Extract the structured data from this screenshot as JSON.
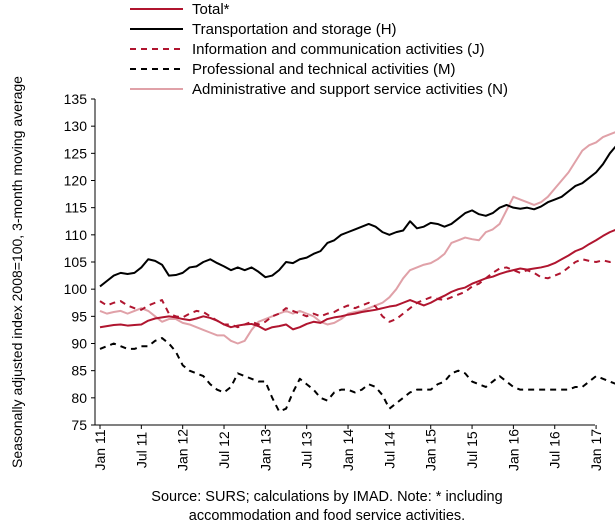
{
  "chart_data": {
    "type": "line",
    "ylabel": "Seasonally adjusted index 2008=100, 3-month moving average",
    "ylim": [
      75,
      135
    ],
    "yticks": [
      75,
      80,
      85,
      90,
      95,
      100,
      105,
      110,
      115,
      120,
      125,
      130,
      135
    ],
    "x_start": "Jan 11",
    "x_end": "Apr 17",
    "xtick_labels": [
      "Jan 11",
      "Jul 11",
      "Jan 12",
      "Jul 12",
      "Jan 13",
      "Jul 13",
      "Jan 14",
      "Jul 14",
      "Jan 15",
      "Jul 15",
      "Jan 16",
      "Jul 16",
      "Jan 17"
    ],
    "legend_position": "top",
    "grid": false,
    "source": "Source: SURS; calculations by IMAD. Note: * including",
    "source_line2": "accommodation and food service activities.",
    "series": [
      {
        "name": "Total*",
        "color": "#b0152f",
        "dash": "solid",
        "values": [
          93.0,
          93.2,
          93.4,
          93.5,
          93.3,
          93.4,
          93.5,
          94.2,
          94.6,
          94.8,
          95.0,
          94.8,
          94.5,
          94.3,
          94.6,
          95.0,
          94.7,
          94.2,
          93.5,
          93.0,
          93.3,
          93.5,
          93.6,
          93.2,
          92.5,
          93.0,
          93.2,
          93.5,
          92.6,
          93.0,
          93.6,
          94.0,
          93.8,
          94.5,
          94.8,
          95.0,
          95.3,
          95.5,
          95.8,
          96.0,
          96.2,
          96.5,
          96.8,
          97.0,
          97.5,
          98.0,
          97.5,
          97.0,
          97.5,
          98.2,
          98.8,
          99.5,
          100.0,
          100.3,
          101.0,
          101.5,
          102.0,
          102.3,
          102.8,
          103.2,
          103.5,
          103.8,
          103.6,
          103.8,
          104.0,
          104.3,
          104.8,
          105.5,
          106.2,
          107.0,
          107.5,
          108.3,
          109.0,
          109.8,
          110.5,
          111.0,
          112.0
        ]
      },
      {
        "name": "Transportation and storage (H)",
        "color": "#000000",
        "dash": "solid",
        "values": [
          100.5,
          101.5,
          102.5,
          103.0,
          102.8,
          103.0,
          104.0,
          105.5,
          105.2,
          104.5,
          102.5,
          102.6,
          103.0,
          104.0,
          104.2,
          105.0,
          105.5,
          104.8,
          104.2,
          103.5,
          104.0,
          103.5,
          104.0,
          103.2,
          102.2,
          102.5,
          103.5,
          105.0,
          104.8,
          105.5,
          105.8,
          106.5,
          107.0,
          108.5,
          109.0,
          110.0,
          110.5,
          111.0,
          111.5,
          112.0,
          111.5,
          110.5,
          110.0,
          110.5,
          110.8,
          112.5,
          111.2,
          111.5,
          112.2,
          112.0,
          111.5,
          112.0,
          113.0,
          114.0,
          114.5,
          113.8,
          113.5,
          114.0,
          115.0,
          115.5,
          115.0,
          114.8,
          115.0,
          114.7,
          115.2,
          116.0,
          116.5,
          117.0,
          118.0,
          119.0,
          119.5,
          120.5,
          121.5,
          123.0,
          125.0,
          126.5,
          127.5
        ]
      },
      {
        "name": "Information and communication activities (J)",
        "color": "#b0152f",
        "dash": "dashed",
        "values": [
          97.8,
          97.0,
          97.5,
          97.8,
          97.0,
          96.5,
          96.2,
          97.0,
          97.5,
          98.0,
          95.5,
          95.0,
          94.8,
          95.5,
          96.0,
          95.8,
          95.0,
          94.2,
          93.5,
          93.5,
          93.0,
          93.5,
          94.0,
          93.5,
          94.0,
          95.0,
          95.5,
          96.5,
          96.0,
          95.5,
          95.0,
          95.5,
          95.0,
          95.5,
          95.8,
          96.5,
          97.0,
          96.5,
          97.0,
          97.5,
          96.8,
          95.0,
          94.0,
          94.5,
          95.5,
          96.5,
          97.5,
          98.0,
          98.5,
          98.2,
          98.0,
          98.5,
          99.0,
          99.5,
          100.5,
          101.0,
          102.0,
          103.0,
          103.8,
          104.0,
          103.5,
          103.0,
          103.5,
          103.0,
          102.2,
          102.0,
          102.5,
          103.0,
          104.0,
          105.0,
          105.5,
          105.2,
          105.0,
          105.3,
          105.0,
          105.5,
          105.8
        ]
      },
      {
        "name": "Professional and technical activities (M)",
        "color": "#000000",
        "dash": "dashed",
        "values": [
          89.0,
          89.5,
          90.0,
          89.5,
          89.0,
          89.0,
          89.5,
          89.5,
          90.5,
          91.0,
          90.0,
          88.5,
          86.0,
          85.0,
          84.5,
          84.0,
          82.5,
          81.5,
          81.0,
          82.0,
          84.5,
          84.0,
          83.5,
          83.0,
          83.0,
          80.0,
          77.5,
          78.0,
          81.0,
          83.5,
          82.5,
          81.5,
          80.0,
          79.5,
          81.0,
          81.5,
          81.5,
          81.0,
          81.5,
          82.5,
          82.0,
          80.5,
          78.0,
          79.0,
          80.0,
          81.0,
          81.5,
          81.5,
          81.5,
          82.5,
          83.0,
          84.5,
          85.0,
          84.5,
          83.0,
          82.5,
          82.0,
          83.0,
          84.0,
          83.0,
          82.0,
          81.5,
          81.5,
          81.5,
          81.5,
          81.5,
          81.5,
          81.5,
          81.5,
          82.0,
          82.0,
          83.0,
          84.0,
          83.5,
          83.0,
          82.5,
          82.5
        ]
      },
      {
        "name": "Administrative and support service activities (N)",
        "color": "#e0a1a8",
        "dash": "solid",
        "values": [
          96.0,
          95.5,
          95.8,
          96.0,
          95.5,
          96.0,
          96.5,
          96.0,
          95.0,
          94.0,
          94.5,
          94.5,
          93.8,
          93.5,
          93.0,
          92.5,
          92.0,
          91.5,
          91.5,
          90.5,
          90.0,
          90.5,
          92.5,
          94.0,
          94.5,
          95.0,
          95.5,
          96.0,
          95.5,
          96.0,
          95.5,
          95.0,
          94.0,
          93.5,
          93.8,
          94.5,
          95.5,
          95.8,
          96.0,
          96.5,
          97.0,
          97.5,
          98.5,
          100.0,
          102.0,
          103.5,
          104.0,
          104.5,
          104.8,
          105.5,
          106.5,
          108.5,
          109.0,
          109.5,
          109.2,
          109.0,
          110.5,
          111.0,
          112.0,
          114.5,
          117.0,
          116.5,
          116.0,
          115.5,
          116.0,
          117.0,
          118.5,
          120.0,
          121.5,
          123.5,
          125.5,
          126.5,
          127.0,
          128.0,
          128.5,
          129.0,
          132.0
        ]
      }
    ]
  }
}
